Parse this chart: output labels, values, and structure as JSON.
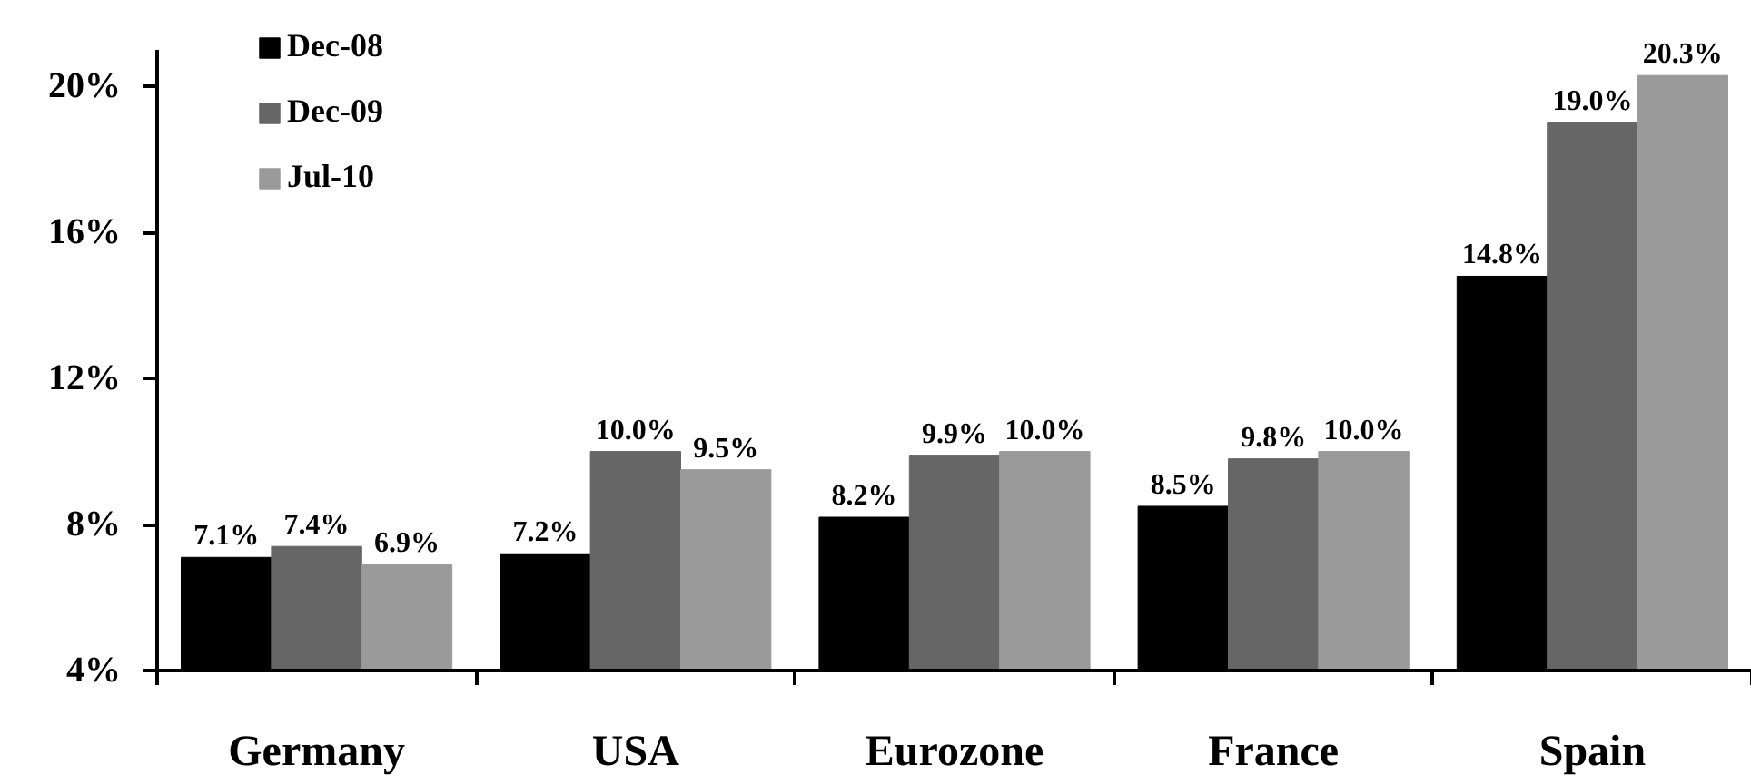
{
  "chart_data": {
    "type": "bar",
    "categories": [
      "Germany",
      "USA",
      "Eurozone",
      "France",
      "Spain"
    ],
    "series": [
      {
        "name": "Dec-08",
        "color": "#000000",
        "values": [
          7.1,
          7.2,
          8.2,
          8.5,
          14.8
        ],
        "value_labels": [
          "7.1%",
          "7.2%",
          "8.2%",
          "8.5%",
          "14.8%"
        ]
      },
      {
        "name": "Dec-09",
        "color": "#666666",
        "values": [
          7.4,
          10.0,
          9.9,
          9.8,
          19.0
        ],
        "value_labels": [
          "7.4%",
          "10.0%",
          "9.9%",
          "9.8%",
          "19.0%"
        ]
      },
      {
        "name": "Jul-10",
        "color": "#9a9a9a",
        "values": [
          6.9,
          9.5,
          10.0,
          10.0,
          20.3
        ],
        "value_labels": [
          "6.9%",
          "9.5%",
          "10.0%",
          "10.0%",
          "20.3%"
        ]
      }
    ],
    "ylim": [
      4,
      21
    ],
    "yticks": [
      {
        "value": 4,
        "label": "4%"
      },
      {
        "value": 8,
        "label": "8%"
      },
      {
        "value": 12,
        "label": "12%"
      },
      {
        "value": 16,
        "label": "16%"
      },
      {
        "value": 20,
        "label": "20%"
      }
    ],
    "legend": "top left",
    "grid": false
  }
}
